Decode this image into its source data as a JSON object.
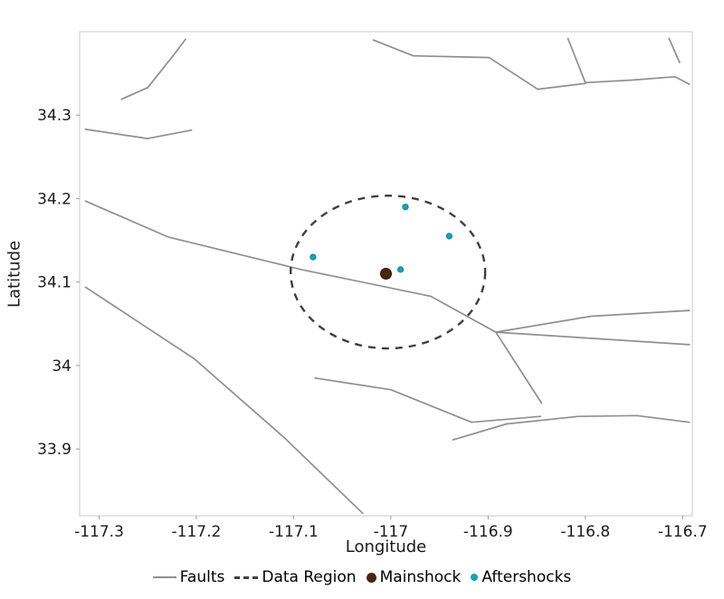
{
  "figure": {
    "background": "#ffffff",
    "frame_color": "#c9c9c9",
    "tick_color": "#9a9a9a"
  },
  "chart_data": {
    "type": "scatter",
    "title": "",
    "xlabel": "Longitude",
    "ylabel": "Latitude",
    "xlim": [
      -117.32,
      -116.69
    ],
    "ylim": [
      33.82,
      34.4
    ],
    "grid": false,
    "legend_position": "bottom",
    "xticks": {
      "values": [
        -117.3,
        -117.2,
        -117.1,
        -117.0,
        -116.9,
        -116.8,
        -116.7
      ],
      "labels": [
        "-117.3",
        "-117.2",
        "-117.1",
        "-117",
        "-116.9",
        "-116.8",
        "-116.7"
      ]
    },
    "yticks": {
      "values": [
        33.9,
        34.0,
        34.1,
        34.2,
        34.3
      ],
      "labels": [
        "33.9",
        "34",
        "34.1",
        "34.2",
        "34.3"
      ]
    },
    "faults": {
      "label": "Faults",
      "color": "#8f8f8f",
      "width": 1.7,
      "polylines": [
        [
          [
            -117.277,
            34.319
          ],
          [
            -117.25,
            34.333
          ],
          [
            -117.224,
            34.371
          ],
          [
            -117.211,
            34.391
          ]
        ],
        [
          [
            -117.314,
            34.283
          ],
          [
            -117.25,
            34.272
          ],
          [
            -117.205,
            34.282
          ]
        ],
        [
          [
            -117.018,
            34.39
          ],
          [
            -116.977,
            34.371
          ],
          [
            -116.899,
            34.369
          ],
          [
            -116.849,
            34.331
          ],
          [
            -116.8,
            34.338
          ]
        ],
        [
          [
            -116.818,
            34.392
          ],
          [
            -116.8,
            34.339
          ],
          [
            -116.752,
            34.342
          ],
          [
            -116.708,
            34.346
          ],
          [
            -116.693,
            34.337
          ]
        ],
        [
          [
            -116.714,
            34.392
          ],
          [
            -116.703,
            34.363
          ]
        ],
        [
          [
            -117.314,
            34.197
          ],
          [
            -117.229,
            34.154
          ],
          [
            -117.092,
            34.115
          ],
          [
            -116.959,
            34.083
          ],
          [
            -116.892,
            34.04
          ],
          [
            -116.693,
            34.025
          ]
        ],
        [
          [
            -116.892,
            34.04
          ],
          [
            -116.794,
            34.059
          ],
          [
            -116.693,
            34.066
          ]
        ],
        [
          [
            -117.314,
            34.094
          ],
          [
            -117.202,
            34.008
          ],
          [
            -117.11,
            33.914
          ],
          [
            -117.029,
            33.823
          ]
        ],
        [
          [
            -116.892,
            34.04
          ],
          [
            -116.845,
            33.955
          ]
        ],
        [
          [
            -117.078,
            33.985
          ],
          [
            -117.0,
            33.971
          ],
          [
            -116.917,
            33.932
          ],
          [
            -116.846,
            33.939
          ]
        ],
        [
          [
            -116.936,
            33.911
          ],
          [
            -116.881,
            33.93
          ],
          [
            -116.807,
            33.939
          ],
          [
            -116.747,
            33.94
          ],
          [
            -116.693,
            33.932
          ]
        ]
      ]
    },
    "data_region": {
      "label": "Data Region",
      "color": "#3f3f3f",
      "style": "dashed",
      "center": [
        -117.003,
        34.112
      ],
      "rx": 0.1,
      "ry": 0.0915
    },
    "mainshock": {
      "label": "Mainshock",
      "color": "#4a2512",
      "edge_color": "#2e1407",
      "radius": 6,
      "points": [
        [
          -117.005,
          34.11
        ]
      ]
    },
    "aftershocks": {
      "label": "Aftershocks",
      "color": "#12a5b8",
      "edge_color": "#0b7783",
      "radius": 3.2,
      "points": [
        [
          -117.08,
          34.13
        ],
        [
          -116.985,
          34.19
        ],
        [
          -116.94,
          34.155
        ],
        [
          -116.99,
          34.115
        ]
      ]
    }
  }
}
